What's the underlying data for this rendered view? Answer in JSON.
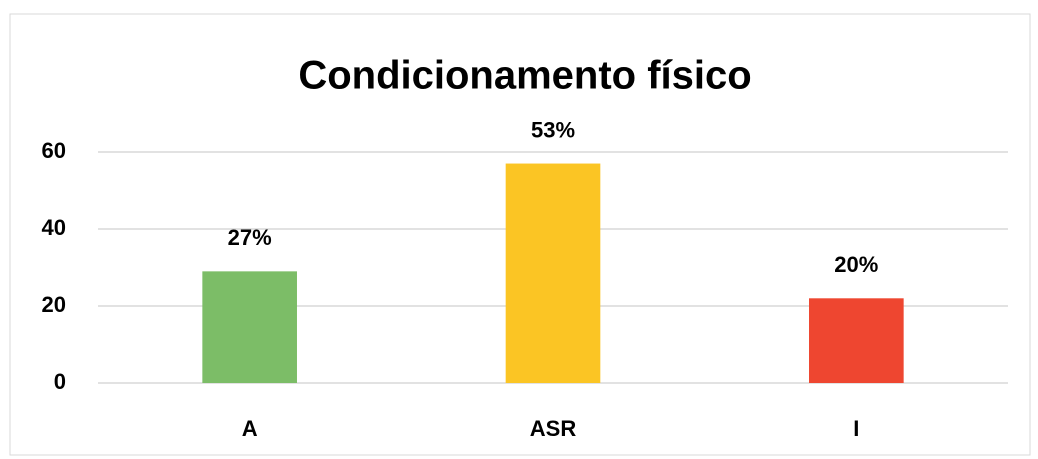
{
  "chart_data": {
    "type": "bar",
    "title": "Condicionamento físico",
    "categories": [
      "A",
      "ASR",
      "I"
    ],
    "values": [
      29,
      57,
      22
    ],
    "value_labels": [
      "27%",
      "53%",
      "20%"
    ],
    "colors": [
      "#7cbd67",
      "#fbc524",
      "#ee4630"
    ],
    "ylim": [
      0,
      60
    ],
    "yticks": [
      0,
      20,
      40,
      60
    ],
    "grid": true
  }
}
